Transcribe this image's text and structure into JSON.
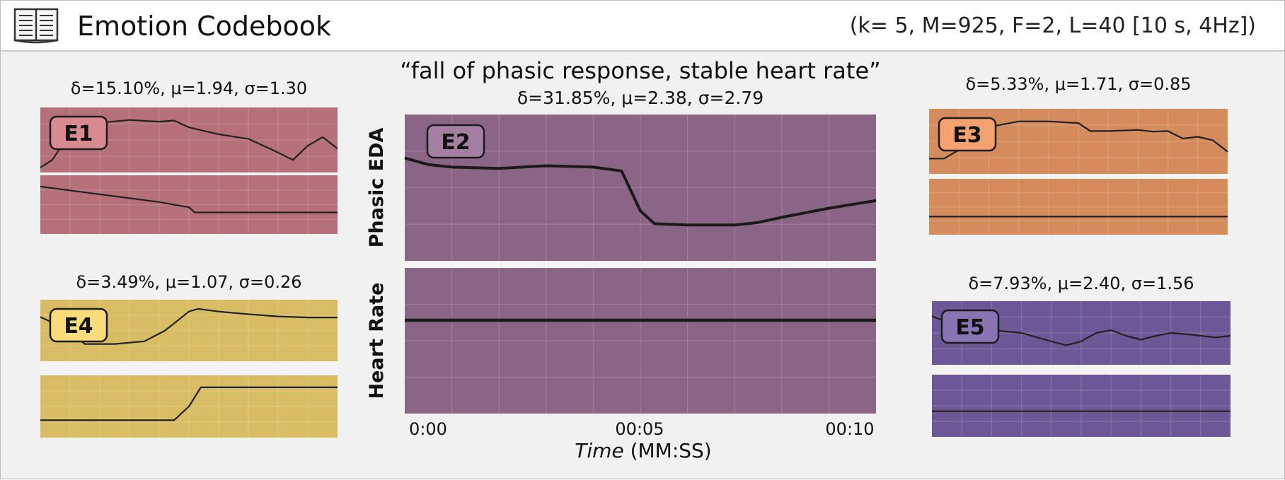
{
  "header": {
    "title": "Emotion Codebook",
    "params": "(k= 5, M=925, F=2, L=40 [10 s, 4Hz])",
    "icon": "book-icon"
  },
  "chart_data": {
    "type": "line",
    "highlight_caption": "“fall of phasic response, stable heart rate”",
    "main": {
      "id": "E2",
      "stats": "δ=31.85%, μ=2.38, σ=2.79",
      "color": "#8b6585",
      "badge_color": "#a57fa1",
      "channels": [
        "Phasic EDA",
        "Heart Rate"
      ],
      "x_ticks": [
        "0:00",
        "00:05",
        "00:10"
      ],
      "x_range": [
        0,
        10
      ],
      "xlabel_italic": "Time",
      "xlabel_rest": " (MM:SS)",
      "series": [
        {
          "x": [
            0,
            0.5,
            1,
            2,
            3,
            4,
            4.6,
            5,
            5.3,
            6,
            7,
            7.5,
            8,
            9,
            10
          ],
          "y": [
            0.73,
            0.68,
            0.66,
            0.65,
            0.67,
            0.66,
            0.63,
            0.32,
            0.22,
            0.21,
            0.21,
            0.23,
            0.27,
            0.34,
            0.4
          ]
        },
        {
          "x": [
            0,
            10
          ],
          "y": [
            0.66,
            0.66
          ]
        }
      ]
    },
    "small": [
      {
        "id": "E1",
        "stats": "δ=15.10%, μ=1.94, σ=1.30",
        "color": "#b5707a",
        "badge_color": "#d98a91",
        "series": [
          {
            "x": [
              0,
              0.4,
              1,
              2,
              3,
              4,
              4.5,
              5,
              6,
              7,
              8,
              8.5,
              9,
              9.5,
              10
            ],
            "y": [
              0.02,
              0.15,
              0.62,
              0.8,
              0.85,
              0.82,
              0.84,
              0.72,
              0.6,
              0.52,
              0.28,
              0.15,
              0.4,
              0.55,
              0.35
            ]
          },
          {
            "x": [
              0,
              2,
              4,
              5,
              5.2,
              6,
              8,
              10
            ],
            "y": [
              0.85,
              0.7,
              0.55,
              0.45,
              0.35,
              0.35,
              0.35,
              0.35
            ]
          }
        ]
      },
      {
        "id": "E3",
        "stats": "δ=5.33%, μ=1.71, σ=0.85",
        "color": "#d48c5c",
        "badge_color": "#f3a26f",
        "series": [
          {
            "x": [
              0,
              0.5,
              1,
              2,
              3,
              4,
              5,
              5.4,
              6,
              7,
              7.5,
              8,
              8.5,
              9,
              9.5,
              10
            ],
            "y": [
              0.2,
              0.2,
              0.35,
              0.75,
              0.85,
              0.85,
              0.82,
              0.68,
              0.68,
              0.7,
              0.67,
              0.68,
              0.55,
              0.58,
              0.52,
              0.32
            ]
          },
          {
            "x": [
              0,
              10
            ],
            "y": [
              0.3,
              0.3
            ]
          }
        ]
      },
      {
        "id": "E4",
        "stats": "δ=3.49%, μ=1.07, σ=0.26",
        "color": "#d8bd62",
        "badge_color": "#fadc7b",
        "series": [
          {
            "x": [
              0,
              0.8,
              1.5,
              2.5,
              3.5,
              4.2,
              5,
              5.3,
              6,
              7,
              8,
              9,
              10
            ],
            "y": [
              0.75,
              0.55,
              0.25,
              0.25,
              0.3,
              0.5,
              0.85,
              0.9,
              0.85,
              0.8,
              0.76,
              0.74,
              0.74
            ]
          },
          {
            "x": [
              0,
              4.5,
              5,
              5.4,
              6,
              8,
              10
            ],
            "y": [
              0.25,
              0.25,
              0.5,
              0.85,
              0.85,
              0.85,
              0.85
            ]
          }
        ]
      },
      {
        "id": "E5",
        "stats": "δ=7.93%, μ=2.40, σ=1.56",
        "color": "#6b5897",
        "badge_color": "#8774b3",
        "series": [
          {
            "x": [
              0,
              0.5,
              1,
              2,
              3,
              4,
              4.5,
              5,
              5.5,
              6,
              6.5,
              7,
              7.5,
              8,
              8.5,
              9,
              9.5,
              10
            ],
            "y": [
              0.8,
              0.7,
              0.72,
              0.55,
              0.5,
              0.35,
              0.28,
              0.35,
              0.5,
              0.55,
              0.45,
              0.38,
              0.45,
              0.5,
              0.48,
              0.45,
              0.42,
              0.45
            ]
          },
          {
            "x": [
              0,
              10
            ],
            "y": [
              0.4,
              0.4
            ]
          }
        ]
      }
    ]
  }
}
